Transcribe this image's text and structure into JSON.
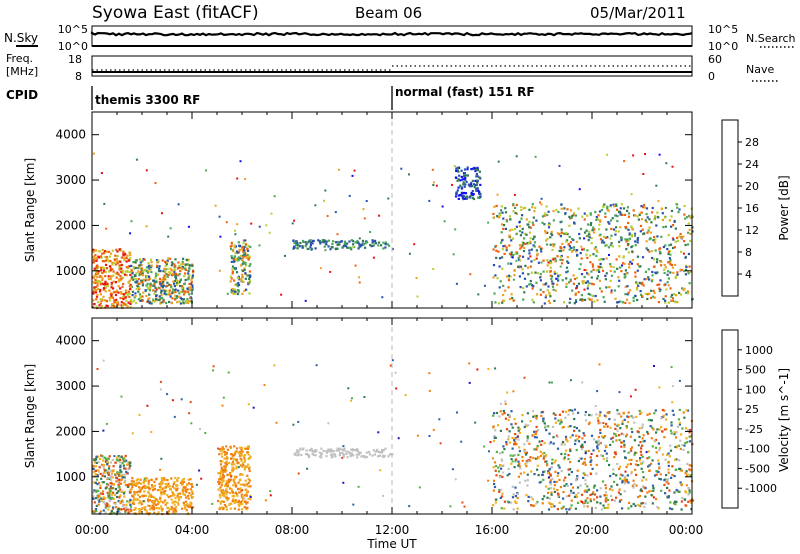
{
  "header": {
    "title": "Syowa East (fitACF)",
    "beam": "Beam 06",
    "date": "05/Mar/2011"
  },
  "top_panels": {
    "nsky_label": "N.Sky",
    "nsky_ticks": [
      "10^5",
      "10^0"
    ],
    "nsearch_label": "N.Search",
    "nsearch_ticks": [
      "10^5",
      "10^0"
    ],
    "freq_label_line1": "Freq.",
    "freq_label_line2": "[MHz]",
    "freq_ticks": [
      "18",
      "8"
    ],
    "nave_label": "Nave",
    "nave_ticks": [
      "60",
      "0"
    ],
    "cpid_label": "CPID",
    "cpid_modes": [
      {
        "name": "themis 3300 RF",
        "start_hour": 0
      },
      {
        "name": "normal (fast) 151 RF",
        "start_hour": 12
      }
    ]
  },
  "axes": {
    "x_ticks": [
      "00:00",
      "04:00",
      "08:00",
      "12:00",
      "16:00",
      "20:00",
      "00:00"
    ],
    "x_label": "Time UT",
    "y_label": "Slant Range [km]",
    "y_ticks": [
      "1000",
      "2000",
      "3000",
      "4000"
    ]
  },
  "colorbars": {
    "power": {
      "label": "Power [dB]",
      "ticks": [
        "4",
        "8",
        "12",
        "16",
        "20",
        "24",
        "28"
      ],
      "colors": [
        "#1010f0",
        "#2a4fb0",
        "#2f7a55",
        "#4aa85a",
        "#b8d030",
        "#f0a020",
        "#f06010",
        "#e81010"
      ]
    },
    "velocity": {
      "label": "Velocity [m s^-1]",
      "ticks": [
        "1000",
        "500",
        "100",
        "25",
        "-25",
        "-100",
        "-500",
        "-1000"
      ],
      "colors": [
        "#1818c0",
        "#2f5fa8",
        "#2f7a55",
        "#54b040",
        "#c0c0c0",
        "#f0b020",
        "#f08010",
        "#e84a10",
        "#e81010"
      ]
    }
  },
  "chart_data": [
    {
      "type": "heatmap",
      "panel": "power",
      "xlabel": "Time UT",
      "ylabel": "Slant Range [km]",
      "xlim": [
        0,
        24
      ],
      "ylim": [
        180,
        4500
      ],
      "colorbar_label": "Power [dB]",
      "clim": [
        0,
        32
      ],
      "regions": [
        {
          "t_start": 0.0,
          "t_end": 1.5,
          "r_start": 200,
          "r_end": 1500,
          "level": "20-32 dB"
        },
        {
          "t_start": 1.5,
          "t_end": 4.0,
          "r_start": 300,
          "r_end": 1300,
          "level": "8-24 dB"
        },
        {
          "t_start": 5.5,
          "t_end": 6.3,
          "r_start": 500,
          "r_end": 1700,
          "level": "8-24 dB"
        },
        {
          "t_start": 8.0,
          "t_end": 12.0,
          "r_start": 1500,
          "r_end": 1700,
          "level": "4-16 dB"
        },
        {
          "t_start": 14.5,
          "t_end": 15.5,
          "r_start": 2600,
          "r_end": 3300,
          "level": "4-12 dB"
        },
        {
          "t_start": 16.0,
          "t_end": 24.0,
          "r_start": 300,
          "r_end": 2500,
          "level": "4-28 dB"
        }
      ]
    },
    {
      "type": "heatmap",
      "panel": "velocity",
      "xlabel": "Time UT",
      "ylabel": "Slant Range [km]",
      "xlim": [
        0,
        24
      ],
      "ylim": [
        180,
        4500
      ],
      "colorbar_label": "Velocity [m s^-1]",
      "clim": [
        -1000,
        1000
      ],
      "regions": [
        {
          "t_start": 0.0,
          "t_end": 1.5,
          "r_start": 200,
          "r_end": 1500,
          "level": "-500 to 500 m/s"
        },
        {
          "t_start": 1.5,
          "t_end": 4.0,
          "r_start": 200,
          "r_end": 1000,
          "level": "-500 to -100 m/s"
        },
        {
          "t_start": 5.0,
          "t_end": 6.3,
          "r_start": 300,
          "r_end": 1700,
          "level": "-500 to -100 m/s"
        },
        {
          "t_start": 8.0,
          "t_end": 12.0,
          "r_start": 1450,
          "r_end": 1650,
          "level": "-25 to 25 m/s"
        },
        {
          "t_start": 16.0,
          "t_end": 24.0,
          "r_start": 300,
          "r_end": 2500,
          "level": "-500 to 500 m/s"
        }
      ]
    }
  ]
}
